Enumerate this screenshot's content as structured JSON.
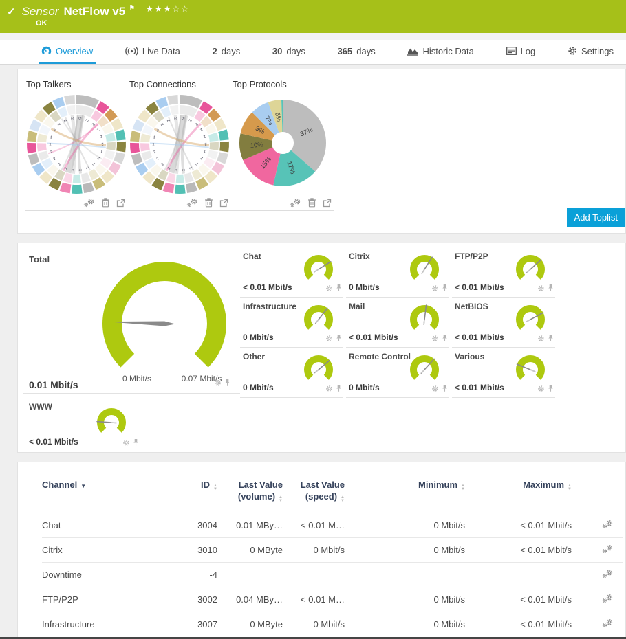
{
  "header": {
    "check_icon": "✓",
    "kind": "Sensor",
    "title": "NetFlow v5",
    "status": "OK",
    "stars_filled": 3,
    "stars_total": 5
  },
  "tabs": [
    {
      "label": "Overview",
      "icon": "gauge",
      "active": true
    },
    {
      "label": "Live Data",
      "icon": "live"
    },
    {
      "strong": "2",
      "label": "days"
    },
    {
      "strong": "30",
      "label": "days"
    },
    {
      "strong": "365",
      "label": "days"
    },
    {
      "label": "Historic Data",
      "icon": "histchart"
    },
    {
      "label": "Log",
      "icon": "log"
    },
    {
      "label": "Settings",
      "icon": "gear"
    }
  ],
  "toplists": {
    "add_button": "Add Toplist",
    "charts": [
      {
        "title": "Top Talkers",
        "kind": "chord"
      },
      {
        "title": "Top Connections",
        "kind": "chord"
      },
      {
        "title": "Top Protocols",
        "kind": "donut"
      }
    ]
  },
  "chart_data": [
    {
      "type": "chord",
      "title": "Top Talkers",
      "segments": [
        {
          "w": 2.2,
          "c": "#bdbdbd"
        },
        {
          "w": 1,
          "c": "#e8559a"
        },
        {
          "w": 1,
          "c": "#d29a55"
        },
        {
          "w": 1,
          "c": "#efe6c8"
        },
        {
          "w": 1,
          "c": "#52c0b4"
        },
        {
          "w": 1,
          "c": "#8a8440"
        },
        {
          "w": 1,
          "c": "#d8d8d8"
        },
        {
          "w": 1,
          "c": "#f3c3d8"
        },
        {
          "w": 1,
          "c": "#efe6c8"
        },
        {
          "w": 1,
          "c": "#c9bd7a"
        },
        {
          "w": 1,
          "c": "#b9b9b9"
        },
        {
          "w": 1,
          "c": "#52c0b4"
        },
        {
          "w": 1,
          "c": "#f085b4"
        },
        {
          "w": 1,
          "c": "#8a8440"
        },
        {
          "w": 1,
          "c": "#efe6c8"
        },
        {
          "w": 1,
          "c": "#a9cdf0"
        },
        {
          "w": 1,
          "c": "#bdbdbd"
        },
        {
          "w": 1,
          "c": "#e8559a"
        },
        {
          "w": 1,
          "c": "#c9bd7a"
        },
        {
          "w": 1,
          "c": "#d6e4f4"
        },
        {
          "w": 1,
          "c": "#efe6c8"
        },
        {
          "w": 1,
          "c": "#8a8440"
        },
        {
          "w": 1,
          "c": "#a9cdf0"
        },
        {
          "w": 1,
          "c": "#d8d8d8"
        }
      ],
      "ribbons": [
        {
          "a": 8,
          "b": 196,
          "w": 9,
          "c": "rgba(160,160,160,0.40)"
        },
        {
          "a": 14,
          "b": 172,
          "w": 4,
          "c": "rgba(160,160,160,0.35)"
        },
        {
          "a": 2,
          "b": 210,
          "w": 2,
          "c": "rgba(160,160,160,0.30)"
        },
        {
          "a": 352,
          "b": 186,
          "w": 5,
          "c": "rgba(190,190,190,0.40)"
        },
        {
          "a": 46,
          "b": 206,
          "w": 3,
          "c": "rgba(233,85,154,0.40)"
        },
        {
          "a": 48,
          "b": 252,
          "w": 2,
          "c": "rgba(233,85,154,0.30)"
        },
        {
          "a": 302,
          "b": 92,
          "w": 3,
          "c": "rgba(210,160,90,0.45)"
        },
        {
          "a": 272,
          "b": 96,
          "w": 2,
          "c": "rgba(169,205,240,0.55)"
        },
        {
          "a": 338,
          "b": 152,
          "w": 2,
          "c": "rgba(160,160,160,0.30)"
        },
        {
          "a": 330,
          "b": 120,
          "w": 2,
          "c": "rgba(160,160,160,0.25)"
        }
      ],
      "inner_digits": "5222221222232222212222"
    },
    {
      "type": "chord",
      "title": "Top Connections",
      "segments": [
        {
          "w": 2.2,
          "c": "#bdbdbd"
        },
        {
          "w": 1,
          "c": "#e8559a"
        },
        {
          "w": 1,
          "c": "#d29a55"
        },
        {
          "w": 1,
          "c": "#efe6c8"
        },
        {
          "w": 1,
          "c": "#52c0b4"
        },
        {
          "w": 1,
          "c": "#8a8440"
        },
        {
          "w": 1,
          "c": "#d8d8d8"
        },
        {
          "w": 1,
          "c": "#f3c3d8"
        },
        {
          "w": 1,
          "c": "#efe6c8"
        },
        {
          "w": 1,
          "c": "#c9bd7a"
        },
        {
          "w": 1,
          "c": "#b9b9b9"
        },
        {
          "w": 1,
          "c": "#52c0b4"
        },
        {
          "w": 1,
          "c": "#f085b4"
        },
        {
          "w": 1,
          "c": "#8a8440"
        },
        {
          "w": 1,
          "c": "#efe6c8"
        },
        {
          "w": 1,
          "c": "#a9cdf0"
        },
        {
          "w": 1,
          "c": "#bdbdbd"
        },
        {
          "w": 1,
          "c": "#e8559a"
        },
        {
          "w": 1,
          "c": "#c9bd7a"
        },
        {
          "w": 1,
          "c": "#d6e4f4"
        },
        {
          "w": 1,
          "c": "#efe6c8"
        },
        {
          "w": 1,
          "c": "#8a8440"
        },
        {
          "w": 1,
          "c": "#a9cdf0"
        },
        {
          "w": 1,
          "c": "#d8d8d8"
        }
      ],
      "ribbons": [
        {
          "a": 8,
          "b": 196,
          "w": 9,
          "c": "rgba(160,160,160,0.40)"
        },
        {
          "a": 14,
          "b": 172,
          "w": 4,
          "c": "rgba(160,160,160,0.35)"
        },
        {
          "a": 2,
          "b": 210,
          "w": 2,
          "c": "rgba(160,160,160,0.30)"
        },
        {
          "a": 352,
          "b": 186,
          "w": 5,
          "c": "rgba(190,190,190,0.40)"
        },
        {
          "a": 46,
          "b": 206,
          "w": 3,
          "c": "rgba(233,85,154,0.40)"
        },
        {
          "a": 302,
          "b": 92,
          "w": 3,
          "c": "rgba(210,160,90,0.45)"
        },
        {
          "a": 272,
          "b": 96,
          "w": 2,
          "c": "rgba(169,205,240,0.55)"
        },
        {
          "a": 338,
          "b": 152,
          "w": 2,
          "c": "rgba(160,160,160,0.30)"
        }
      ],
      "inner_digits": "5222221222232222212222"
    },
    {
      "type": "pie",
      "title": "Top Protocols",
      "values": [
        36.5,
        17,
        15,
        10,
        9,
        7,
        5,
        0.5
      ],
      "labels": [
        "37%",
        "17%",
        "15%",
        "10%",
        "9%",
        "7%",
        "5%",
        ""
      ],
      "colors": [
        "#bdbdbd",
        "#57c3b7",
        "#f0679f",
        "#827d3f",
        "#d69a4c",
        "#a9cdf0",
        "#ded597",
        "#57c3b7"
      ]
    }
  ],
  "gauges": {
    "total": {
      "name": "Total",
      "value": "0.01 Mbit/s",
      "scale_min": "0 Mbit/s",
      "scale_max": "0.07 Mbit/s",
      "needle_deg": 272
    },
    "channels": [
      {
        "name": "Chat",
        "value": "< 0.01 Mbit/s",
        "needle_deg": 58
      },
      {
        "name": "Citrix",
        "value": "0 Mbit/s",
        "needle_deg": 32
      },
      {
        "name": "FTP/P2P",
        "value": "< 0.01 Mbit/s",
        "needle_deg": 48
      },
      {
        "name": "Infrastructure",
        "value": "0 Mbit/s",
        "needle_deg": 38
      },
      {
        "name": "Mail",
        "value": "< 0.01 Mbit/s",
        "needle_deg": 7
      },
      {
        "name": "NetBIOS",
        "value": "< 0.01 Mbit/s",
        "needle_deg": 62
      },
      {
        "name": "Other",
        "value": "0 Mbit/s",
        "needle_deg": 50
      },
      {
        "name": "Remote Control",
        "value": "0 Mbit/s",
        "needle_deg": 42
      },
      {
        "name": "Various",
        "value": "< 0.01 Mbit/s",
        "needle_deg": 292
      }
    ],
    "www": {
      "name": "WWW",
      "value": "< 0.01 Mbit/s",
      "needle_deg": 274
    }
  },
  "table": {
    "columns": [
      {
        "label": "Channel",
        "sort": "active"
      },
      {
        "label": "ID",
        "sort": "both"
      },
      {
        "label": "Last Value",
        "sub": "(volume)",
        "sort": "both"
      },
      {
        "label": "Last Value",
        "sub": "(speed)",
        "sort": "both"
      },
      {
        "label": "Minimum",
        "sort": "both"
      },
      {
        "label": "Maximum",
        "sort": "both"
      }
    ],
    "rows": [
      {
        "channel": "Chat",
        "id": "3004",
        "last_volume": "0.01 MBy…",
        "last_speed": "< 0.01 M…",
        "min": "0 Mbit/s",
        "max": "< 0.01 Mbit/s"
      },
      {
        "channel": "Citrix",
        "id": "3010",
        "last_volume": "0 MByte",
        "last_speed": "0 Mbit/s",
        "min": "0 Mbit/s",
        "max": "< 0.01 Mbit/s"
      },
      {
        "channel": "Downtime",
        "id": "-4",
        "last_volume": "",
        "last_speed": "",
        "min": "",
        "max": ""
      },
      {
        "channel": "FTP/P2P",
        "id": "3002",
        "last_volume": "0.04 MBy…",
        "last_speed": "< 0.01 M…",
        "min": "0 Mbit/s",
        "max": "< 0.01 Mbit/s"
      },
      {
        "channel": "Infrastructure",
        "id": "3007",
        "last_volume": "0 MByte",
        "last_speed": "0 Mbit/s",
        "min": "0 Mbit/s",
        "max": "< 0.01 Mbit/s"
      }
    ]
  },
  "colors": {
    "header_green": "#a6c019",
    "gauge_green": "#aec90f",
    "accent_blue": "#1d9bd8",
    "button_blue": "#0aa0d8",
    "table_header_text": "#35425b"
  }
}
